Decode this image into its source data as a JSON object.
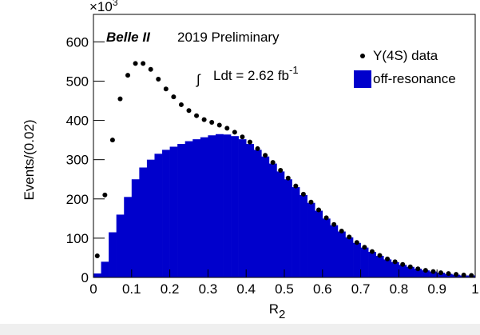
{
  "chart_data": {
    "type": "histogram",
    "title": "Belle II",
    "subtitle": "2019 Preliminary",
    "annotation": {
      "integral": "∫",
      "text": "Ldt = 2.62 fb",
      "exponent": "-1"
    },
    "y_multiplier": {
      "text": "×10",
      "exponent": "3"
    },
    "x_label": {
      "text": "R",
      "subscript": "2"
    },
    "y_label": "Events/(0.02)",
    "xlim": [
      0,
      1
    ],
    "ylim": [
      0,
      670
    ],
    "xticks": [
      0,
      0.1,
      0.2,
      0.3,
      0.4,
      0.5,
      0.6,
      0.7,
      0.8,
      0.9,
      1
    ],
    "yticks": [
      0,
      100,
      200,
      300,
      400,
      500,
      600
    ],
    "legend": "top-right",
    "bins": [
      0,
      0.02,
      0.04,
      0.06,
      0.08,
      0.1,
      0.12,
      0.14,
      0.16,
      0.18,
      0.2,
      0.22,
      0.24,
      0.26,
      0.28,
      0.3,
      0.32,
      0.34,
      0.36,
      0.38,
      0.4,
      0.42,
      0.44,
      0.46,
      0.48,
      0.5,
      0.52,
      0.54,
      0.56,
      0.58,
      0.6,
      0.62,
      0.64,
      0.66,
      0.68,
      0.7,
      0.72,
      0.74,
      0.76,
      0.78,
      0.8,
      0.82,
      0.84,
      0.86,
      0.88,
      0.9,
      0.92,
      0.94,
      0.96,
      0.98,
      1
    ],
    "series": [
      {
        "name": "off-resonance",
        "type": "histogram",
        "color": "#0000cc",
        "values": [
          10,
          40,
          115,
          160,
          205,
          250,
          280,
          300,
          315,
          325,
          333,
          340,
          347,
          352,
          357,
          362,
          365,
          364,
          360,
          352,
          340,
          325,
          308,
          290,
          270,
          250,
          230,
          210,
          190,
          170,
          150,
          133,
          117,
          102,
          88,
          76,
          65,
          55,
          46,
          39,
          32,
          27,
          22,
          18,
          15,
          12,
          9,
          7,
          5,
          5
        ]
      },
      {
        "name": "Υ(4S) data",
        "type": "scatter",
        "color": "#000000",
        "x": [
          0.01,
          0.03,
          0.05,
          0.07,
          0.09,
          0.11,
          0.13,
          0.15,
          0.17,
          0.19,
          0.21,
          0.23,
          0.25,
          0.27,
          0.29,
          0.31,
          0.33,
          0.35,
          0.37,
          0.39,
          0.41,
          0.43,
          0.45,
          0.47,
          0.49,
          0.51,
          0.53,
          0.55,
          0.57,
          0.59,
          0.61,
          0.63,
          0.65,
          0.67,
          0.69,
          0.71,
          0.73,
          0.75,
          0.77,
          0.79,
          0.81,
          0.83,
          0.85,
          0.87,
          0.89,
          0.91,
          0.93,
          0.95,
          0.97,
          0.99
        ],
        "values": [
          55,
          210,
          350,
          455,
          515,
          545,
          545,
          530,
          505,
          480,
          460,
          440,
          425,
          412,
          402,
          395,
          388,
          380,
          370,
          358,
          345,
          328,
          311,
          293,
          273,
          253,
          233,
          212,
          192,
          172,
          152,
          135,
          118,
          103,
          89,
          77,
          66,
          56,
          47,
          40,
          33,
          27,
          22,
          18,
          15,
          12,
          10,
          8,
          6,
          5
        ]
      }
    ]
  }
}
